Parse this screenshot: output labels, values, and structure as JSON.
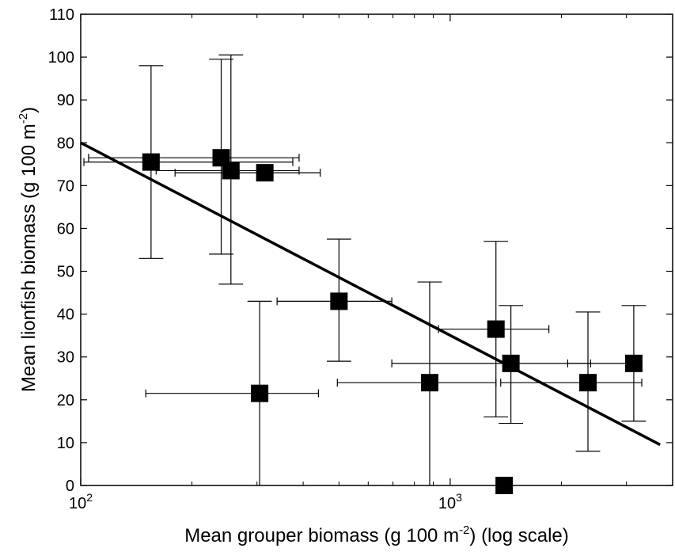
{
  "chart_data": {
    "type": "scatter",
    "title": "",
    "xlabel": {
      "prefix": "Mean grouper biomass (g 100 m",
      "superscript": "-2",
      "suffix": ") (log scale)"
    },
    "ylabel": {
      "prefix": "Mean lionfish biomass (g 100 m",
      "superscript": "-2",
      "suffix": ")"
    },
    "x_scale": "log",
    "xlim": [
      100,
      4000
    ],
    "ylim": [
      0,
      110
    ],
    "x_ticks": [
      {
        "value": 100,
        "base": "10",
        "exp": "2"
      },
      {
        "value": 1000,
        "base": "10",
        "exp": "3"
      }
    ],
    "y_ticks": [
      0,
      10,
      20,
      30,
      40,
      50,
      60,
      70,
      80,
      90,
      100,
      110
    ],
    "points": [
      {
        "x": 155,
        "y": 75.5,
        "x_err": [
          102,
          375
        ],
        "y_err": [
          53,
          98
        ]
      },
      {
        "x": 240,
        "y": 76.5,
        "x_err": [
          105,
          390
        ],
        "y_err": [
          54,
          99.5
        ]
      },
      {
        "x": 255,
        "y": 73.5,
        "x_err": [
          160,
          390
        ],
        "y_err": [
          47,
          100.5
        ]
      },
      {
        "x": 315,
        "y": 73,
        "x_err": [
          180,
          445
        ],
        "y_err": [
          73,
          73
        ]
      },
      {
        "x": 305,
        "y": 21.5,
        "x_err": [
          150,
          440
        ],
        "y_err": [
          0,
          43
        ]
      },
      {
        "x": 500,
        "y": 43,
        "x_err": [
          340,
          695
        ],
        "y_err": [
          29,
          57.5
        ]
      },
      {
        "x": 880,
        "y": 24,
        "x_err": [
          495,
          1330
        ],
        "y_err": [
          0,
          47.5
        ]
      },
      {
        "x": 1330,
        "y": 36.5,
        "x_err": [
          930,
          1850
        ],
        "y_err": [
          16,
          57
        ]
      },
      {
        "x": 1460,
        "y": 28.5,
        "x_err": [
          695,
          2400
        ],
        "y_err": [
          14.5,
          42
        ]
      },
      {
        "x": 2360,
        "y": 24,
        "x_err": [
          1370,
          3300
        ],
        "y_err": [
          8,
          40.5
        ]
      },
      {
        "x": 3140,
        "y": 28.5,
        "x_err": [
          2080,
          3280
        ],
        "y_err": [
          15,
          42
        ]
      },
      {
        "x": 1400,
        "y": 0,
        "x_err": [
          1400,
          1400
        ],
        "y_err": [
          0,
          0
        ]
      }
    ],
    "regression_line": {
      "x": [
        100,
        3700
      ],
      "y": [
        80,
        9.5
      ]
    },
    "grid": false,
    "legend": "none",
    "colors": {
      "marker": "#000000",
      "line": "#000000",
      "error_bar": "#000000"
    }
  }
}
